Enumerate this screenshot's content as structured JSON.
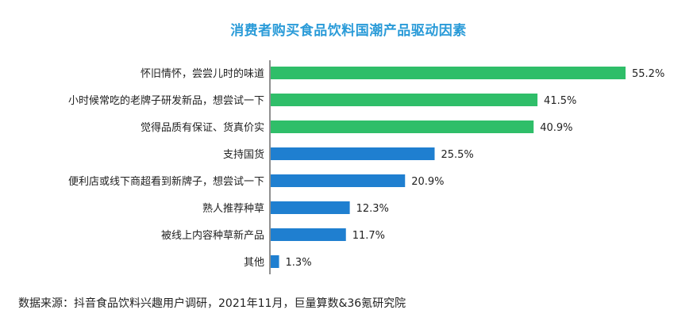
{
  "colors": {
    "title": "#2a9bd8",
    "green": "#2fbe69",
    "blue": "#1f7fd0",
    "axis": "#222222"
  },
  "chart_data": {
    "type": "bar",
    "orientation": "horizontal",
    "title": "消费者购买食品饮料国潮产品驱动因素",
    "unit": "%",
    "categories": [
      "怀旧情怀，尝尝儿时的味道",
      "小时候常吃的老牌子研发新品，想尝试一下",
      "觉得品质有保证、货真价实",
      "支持国货",
      "便利店或线下商超看到新牌子，想尝试一下",
      "熟人推荐种草",
      "被线上内容种草新产品",
      "其他"
    ],
    "values": [
      55.2,
      41.5,
      40.9,
      25.5,
      20.9,
      12.3,
      11.7,
      1.3
    ],
    "value_labels": [
      "55.2%",
      "41.5%",
      "40.9%",
      "25.5%",
      "20.9%",
      "12.3%",
      "11.7%",
      "1.3%"
    ],
    "bar_colors": [
      "#2fbe69",
      "#2fbe69",
      "#2fbe69",
      "#1f7fd0",
      "#1f7fd0",
      "#1f7fd0",
      "#1f7fd0",
      "#1f7fd0"
    ],
    "xlim": [
      0,
      55.2
    ],
    "grid": false,
    "legend": "none"
  },
  "source": "数据来源：抖音食品饮料兴趣用户调研，2021年11月，巨量算数&36氪研究院"
}
